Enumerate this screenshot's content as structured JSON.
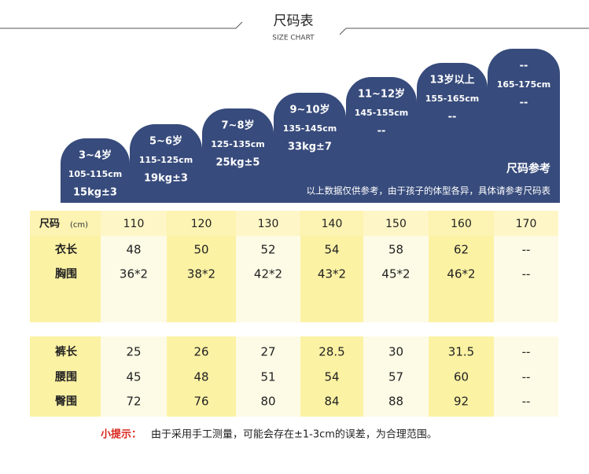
{
  "header": {
    "title": "尺码表",
    "subtitle": "SIZE CHART"
  },
  "size_groups": [
    {
      "age": "3~4岁",
      "height": "105-115cm",
      "weight": "15kg±3"
    },
    {
      "age": "5~6岁",
      "height": "115-125cm",
      "weight": "19kg±3"
    },
    {
      "age": "7~8岁",
      "height": "125-135cm",
      "weight": "25kg±5"
    },
    {
      "age": "9~10岁",
      "height": "135-145cm",
      "weight": "33kg±7"
    },
    {
      "age": "11~12岁",
      "height": "145-155cm",
      "weight": "--"
    },
    {
      "age": "13岁以上",
      "height": "155-165cm",
      "weight": "--"
    },
    {
      "age": "--",
      "height": "165-175cm",
      "weight": "--"
    }
  ],
  "reference": {
    "title": "尺码参考",
    "note": "以上数据仅供参考，由于孩子的体型各异，具体请参考尺码表"
  },
  "table": {
    "header": {
      "label": "尺码",
      "unit": "(cm)",
      "sizes": [
        "110",
        "120",
        "130",
        "140",
        "150",
        "160",
        "170"
      ]
    },
    "rows": [
      {
        "label": "衣长",
        "values": [
          "48",
          "50",
          "52",
          "54",
          "58",
          "62",
          "--"
        ]
      },
      {
        "label": "胸围",
        "values": [
          "36*2",
          "38*2",
          "42*2",
          "43*2",
          "45*2",
          "46*2",
          "--"
        ]
      },
      {
        "label": "裤长",
        "values": [
          "25",
          "26",
          "27",
          "28.5",
          "30",
          "31.5",
          "--"
        ]
      },
      {
        "label": "腰围",
        "values": [
          "45",
          "48",
          "51",
          "54",
          "57",
          "60",
          "--"
        ]
      },
      {
        "label": "臀围",
        "values": [
          "72",
          "76",
          "80",
          "84",
          "88",
          "92",
          "--"
        ]
      }
    ]
  },
  "tip": {
    "label": "小提示：",
    "text": "由于采用手工测量，可能会存在±1-3cm的误差，为合理范围。"
  }
}
